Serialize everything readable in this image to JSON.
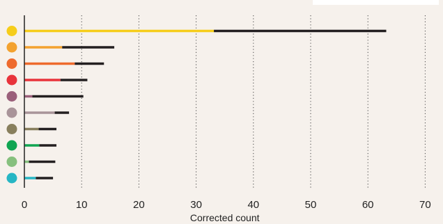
{
  "chart_data": {
    "type": "bar",
    "orientation": "horizontal",
    "stacked": true,
    "xlabel": "Corrected count",
    "ylabel": "",
    "xlim": [
      0,
      70
    ],
    "x_ticks": [
      0,
      10,
      20,
      30,
      40,
      50,
      60,
      70
    ],
    "grid": "vertical dotted",
    "categories": [
      "",
      "",
      "",
      "",
      "",
      "",
      "",
      "",
      "",
      ""
    ],
    "category_colors": [
      "#f6cd1a",
      "#f3a22f",
      "#ee6a2d",
      "#e8333b",
      "#9a5f7a",
      "#a99499",
      "#887f5d",
      "#10a552",
      "#86c07e",
      "#26b6c4"
    ],
    "series": [
      {
        "values": [
          33.1,
          6.6,
          8.8,
          6.3,
          1.4,
          5.3,
          2.5,
          2.6,
          0.8,
          2.0
        ]
      },
      {
        "values": [
          30.1,
          9.1,
          5.1,
          4.7,
          8.9,
          2.5,
          3.1,
          3.0,
          4.6,
          3.0
        ]
      }
    ],
    "series_color_rule": {
      "segment1": "category_color",
      "segment2": "#231f20"
    }
  }
}
